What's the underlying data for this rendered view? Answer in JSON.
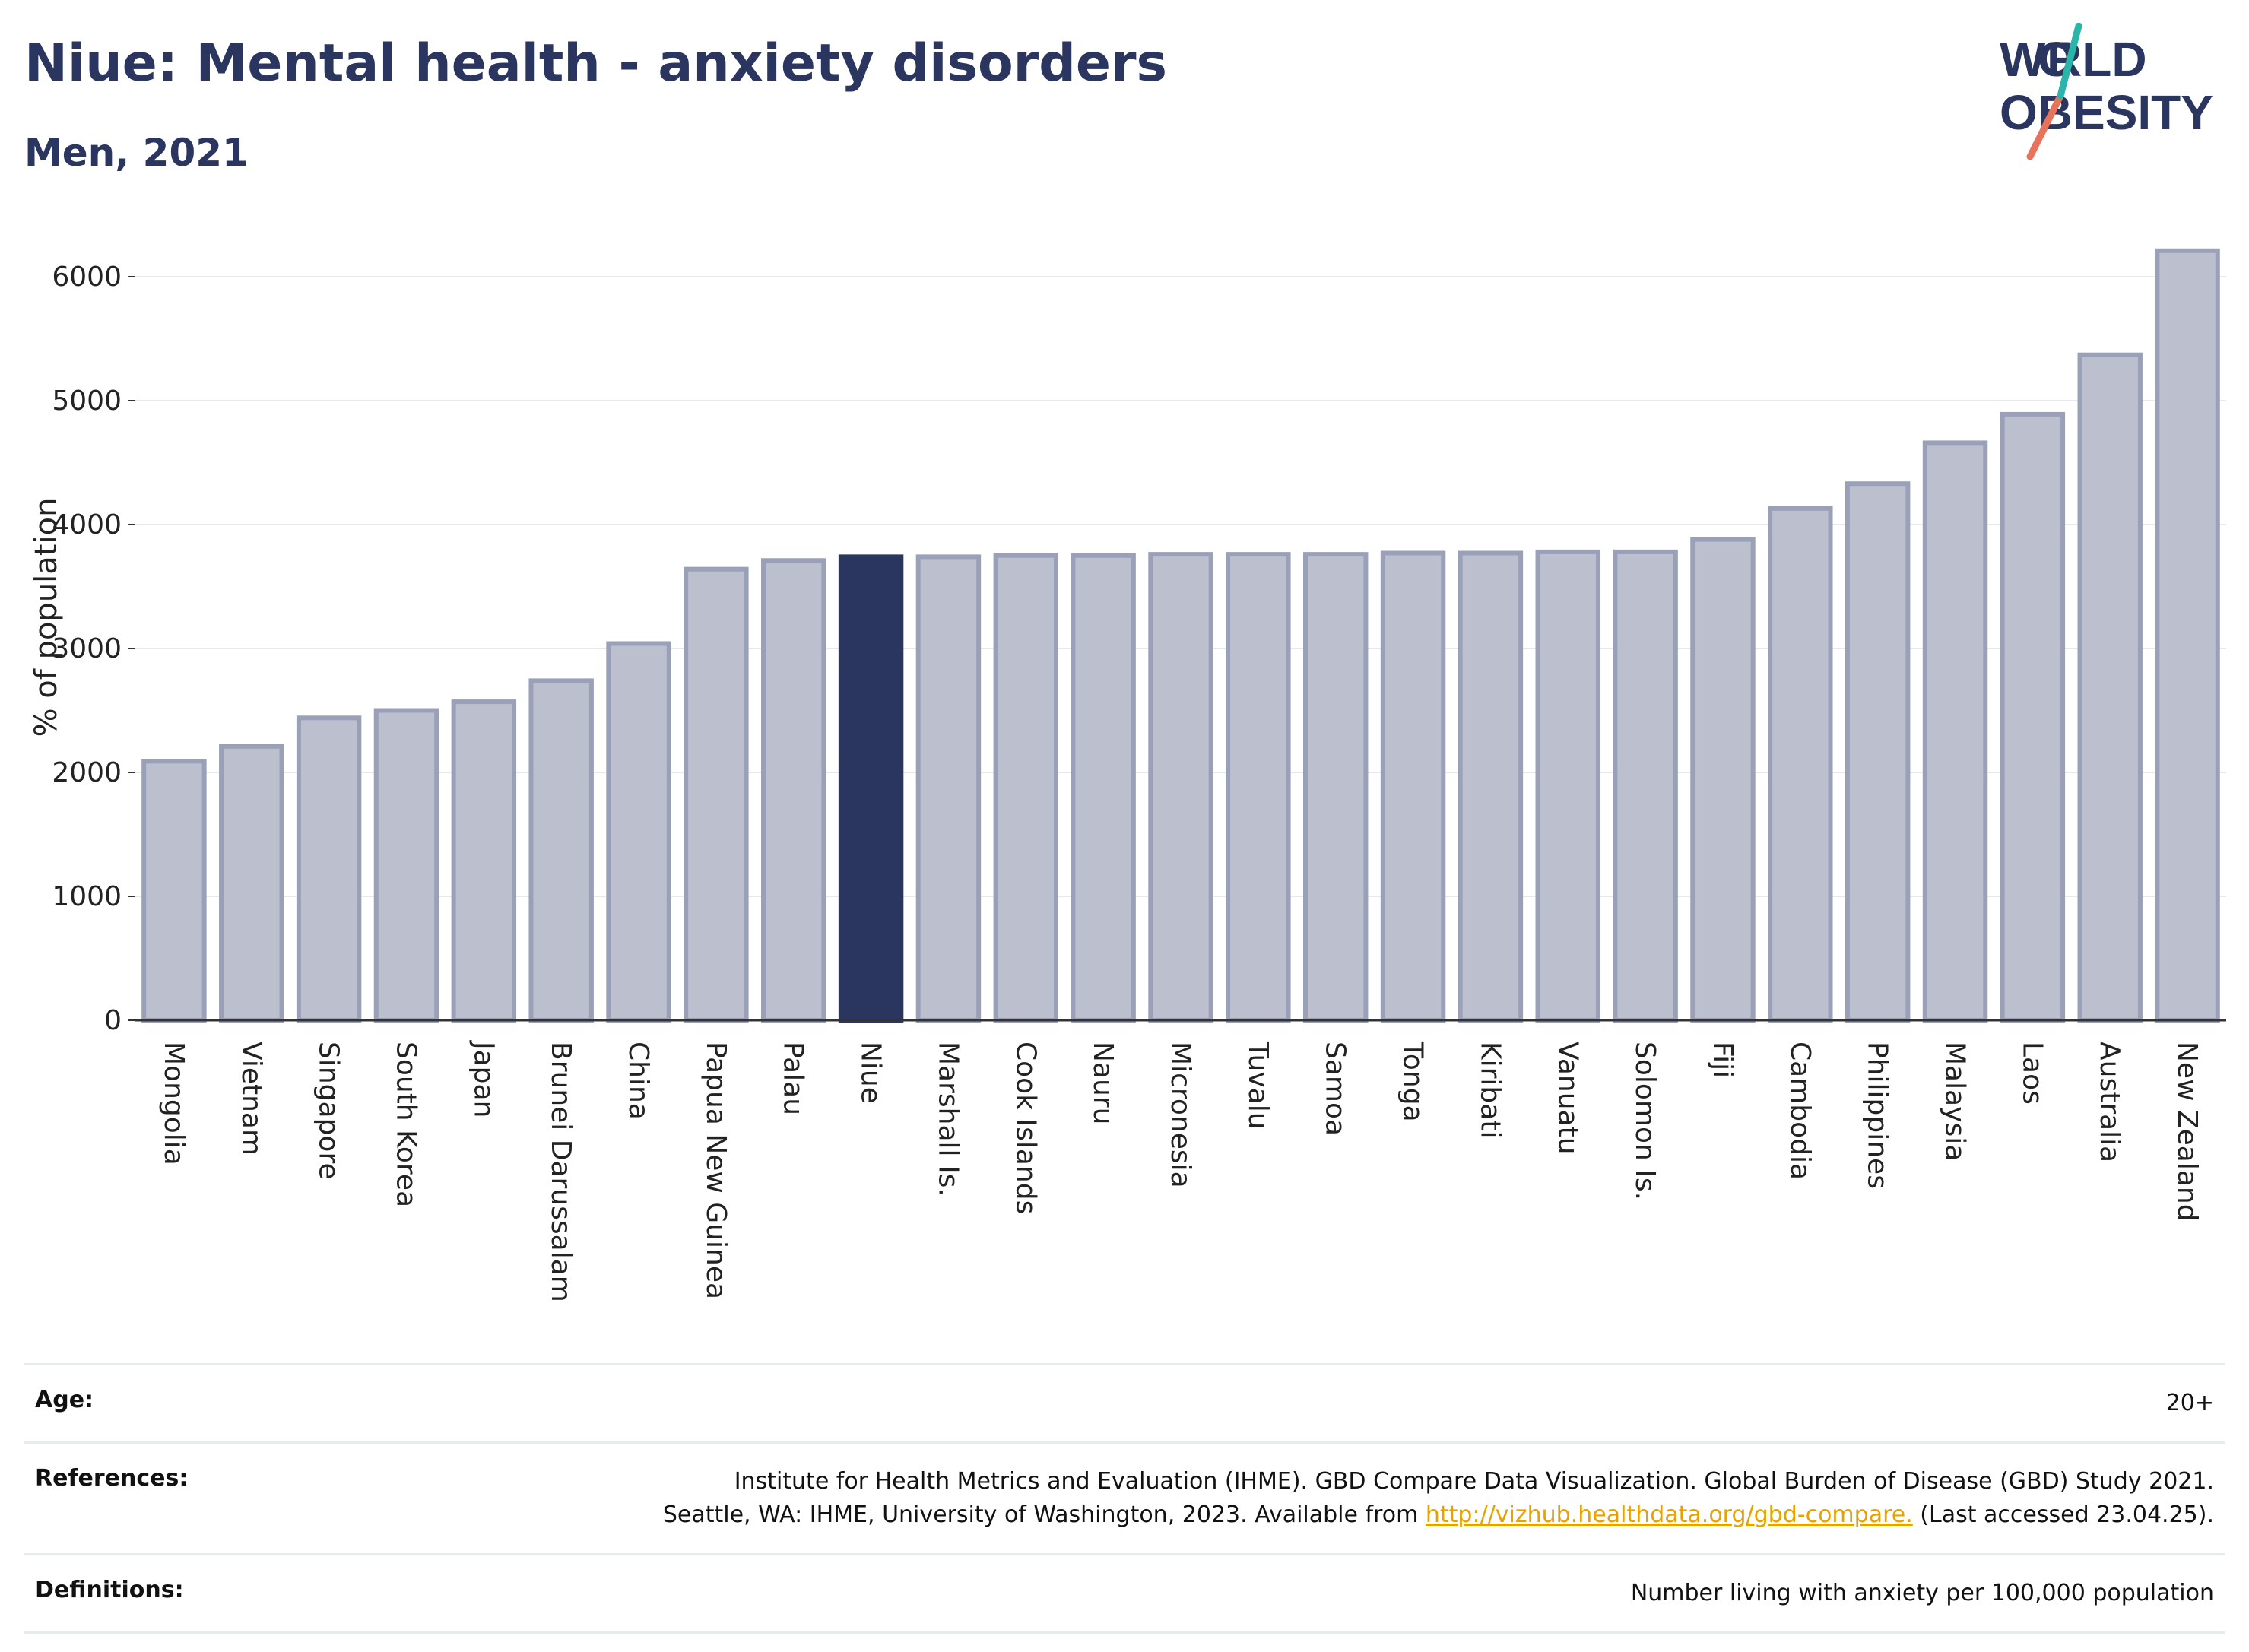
{
  "header": {
    "title": "Niue: Mental health - anxiety disorders",
    "subtitle": "Men, 2021"
  },
  "logo": {
    "text": "WORLD OBESITY",
    "name": "world-obesity-logo"
  },
  "chart_data": {
    "type": "bar",
    "ylabel": "% of population",
    "xlabel": "",
    "ylim": [
      0,
      6400
    ],
    "yticks": [
      0,
      1000,
      2000,
      3000,
      4000,
      5000,
      6000
    ],
    "grid": true,
    "highlight": "Niue",
    "colors": {
      "bar": "#bcc0ce",
      "bar_edge": "#9aa0b8",
      "highlight": "#2a3560"
    },
    "categories": [
      "Mongolia",
      "Vietnam",
      "Singapore",
      "South Korea",
      "Japan",
      "Brunei Darussalam",
      "China",
      "Papua New Guinea",
      "Palau",
      "Niue",
      "Marshall Is.",
      "Cook Islands",
      "Nauru",
      "Micronesia",
      "Tuvalu",
      "Samoa",
      "Tonga",
      "Kiribati",
      "Vanuatu",
      "Solomon Is.",
      "Fiji",
      "Cambodia",
      "Philippines",
      "Malaysia",
      "Laos",
      "Australia",
      "New Zealand"
    ],
    "values": [
      2090,
      2210,
      2440,
      2500,
      2570,
      2740,
      3040,
      3640,
      3710,
      3740,
      3740,
      3750,
      3750,
      3760,
      3760,
      3760,
      3770,
      3770,
      3780,
      3780,
      3880,
      4130,
      4330,
      4660,
      4890,
      5370,
      6210
    ]
  },
  "footer": {
    "age_label": "Age:",
    "age_value": "20+",
    "ref_label": "References:",
    "ref_text": "Institute for Health Metrics and Evaluation (IHME). GBD Compare Data Visualization. Global Burden of Disease (GBD) Study 2021. Seattle, WA: IHME, University of Washington, 2023. Available from",
    "ref_link": "http://vizhub.healthdata.org/gbd-compare.",
    "ref_tail": "(Last accessed 23.04.25).",
    "def_label": "Definitions:",
    "def_value": "Number living with anxiety per 100,000 population"
  }
}
